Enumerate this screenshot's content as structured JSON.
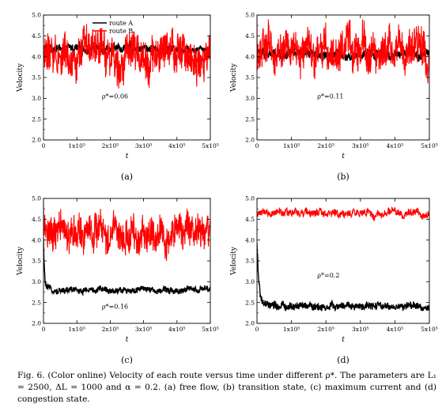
{
  "caption": {
    "lead": "Fig. 6.",
    "text": "(Color online) Velocity of each route versus time under different ρ*. The parameters are L₁ = 2500, ΔL = 1000 and α = 0.2. (a) free flow, (b) transition state, (c) maximum current and (d) congestion state."
  },
  "colors": {
    "route_A": "#000000",
    "route_B": "#ff0000"
  },
  "chart_data": [
    {
      "type": "line",
      "panel": "(a)",
      "annotation": "ρ*=0.06",
      "xlabel": "t",
      "ylabel": "Velocity",
      "xlim": [
        0,
        500000
      ],
      "ylim": [
        2.0,
        5.0
      ],
      "xticks": [
        "0",
        "1x10⁵",
        "2x10⁵",
        "3x10⁵",
        "4x10⁵",
        "5x10⁵"
      ],
      "yticks": [
        "2.0",
        "2.5",
        "3.0",
        "3.5",
        "4.0",
        "4.5",
        "5.0"
      ],
      "legend": [
        "route A",
        "route B"
      ],
      "series": [
        {
          "name": "route A",
          "start": 4.2,
          "mean": 4.2,
          "amp": 0.1,
          "decay": 0
        },
        {
          "name": "route B",
          "start": 4.1,
          "mean": 4.05,
          "amp": 0.5,
          "decay": 0
        }
      ]
    },
    {
      "type": "line",
      "panel": "(b)",
      "annotation": "ρ*=0.11",
      "xlabel": "t",
      "ylabel": "Velocity",
      "xlim": [
        0,
        500000
      ],
      "ylim": [
        2.0,
        5.0
      ],
      "xticks": [
        "0",
        "1x10⁵",
        "2x10⁵",
        "3x10⁵",
        "4x10⁵",
        "5x10⁵"
      ],
      "yticks": [
        "2.0",
        "2.5",
        "3.0",
        "3.5",
        "4.0",
        "4.5",
        "5.0"
      ],
      "series": [
        {
          "name": "route A",
          "start": 4.05,
          "mean": 4.05,
          "amp": 0.12,
          "decay": 0
        },
        {
          "name": "route B",
          "start": 4.7,
          "mean": 4.15,
          "amp": 0.5,
          "decay": 0
        }
      ]
    },
    {
      "type": "line",
      "panel": "(c)",
      "annotation": "ρ*=0.16",
      "xlabel": "t",
      "ylabel": "Velocity",
      "xlim": [
        0,
        500000
      ],
      "ylim": [
        2.0,
        5.0
      ],
      "xticks": [
        "0",
        "1x10⁵",
        "2x10⁵",
        "3x10⁵",
        "4x10⁵",
        "5x10⁵"
      ],
      "yticks": [
        "2.0",
        "2.5",
        "3.0",
        "3.5",
        "4.0",
        "4.5",
        "5.0"
      ],
      "series": [
        {
          "name": "route A",
          "start": 4.0,
          "mean": 2.8,
          "amp": 0.08,
          "decay": 3000
        },
        {
          "name": "route B",
          "start": 4.75,
          "mean": 4.15,
          "amp": 0.45,
          "decay": 0
        }
      ]
    },
    {
      "type": "line",
      "panel": "(d)",
      "annotation": "ρ*=0.2",
      "xlabel": "t",
      "ylabel": "Velocity",
      "xlim": [
        0,
        500000
      ],
      "ylim": [
        2.0,
        5.0
      ],
      "xticks": [
        "0",
        "1x10⁵",
        "2x10⁵",
        "3x10⁵",
        "4x10⁵",
        "5x10⁵"
      ],
      "yticks": [
        "2.0",
        "2.5",
        "3.0",
        "3.5",
        "4.0",
        "4.5",
        "5.0"
      ],
      "series": [
        {
          "name": "route A",
          "start": 3.9,
          "mean": 2.4,
          "amp": 0.1,
          "decay": 6000
        },
        {
          "name": "route B",
          "start": 4.65,
          "mean": 4.65,
          "amp": 0.1,
          "decay": 0
        }
      ]
    }
  ]
}
